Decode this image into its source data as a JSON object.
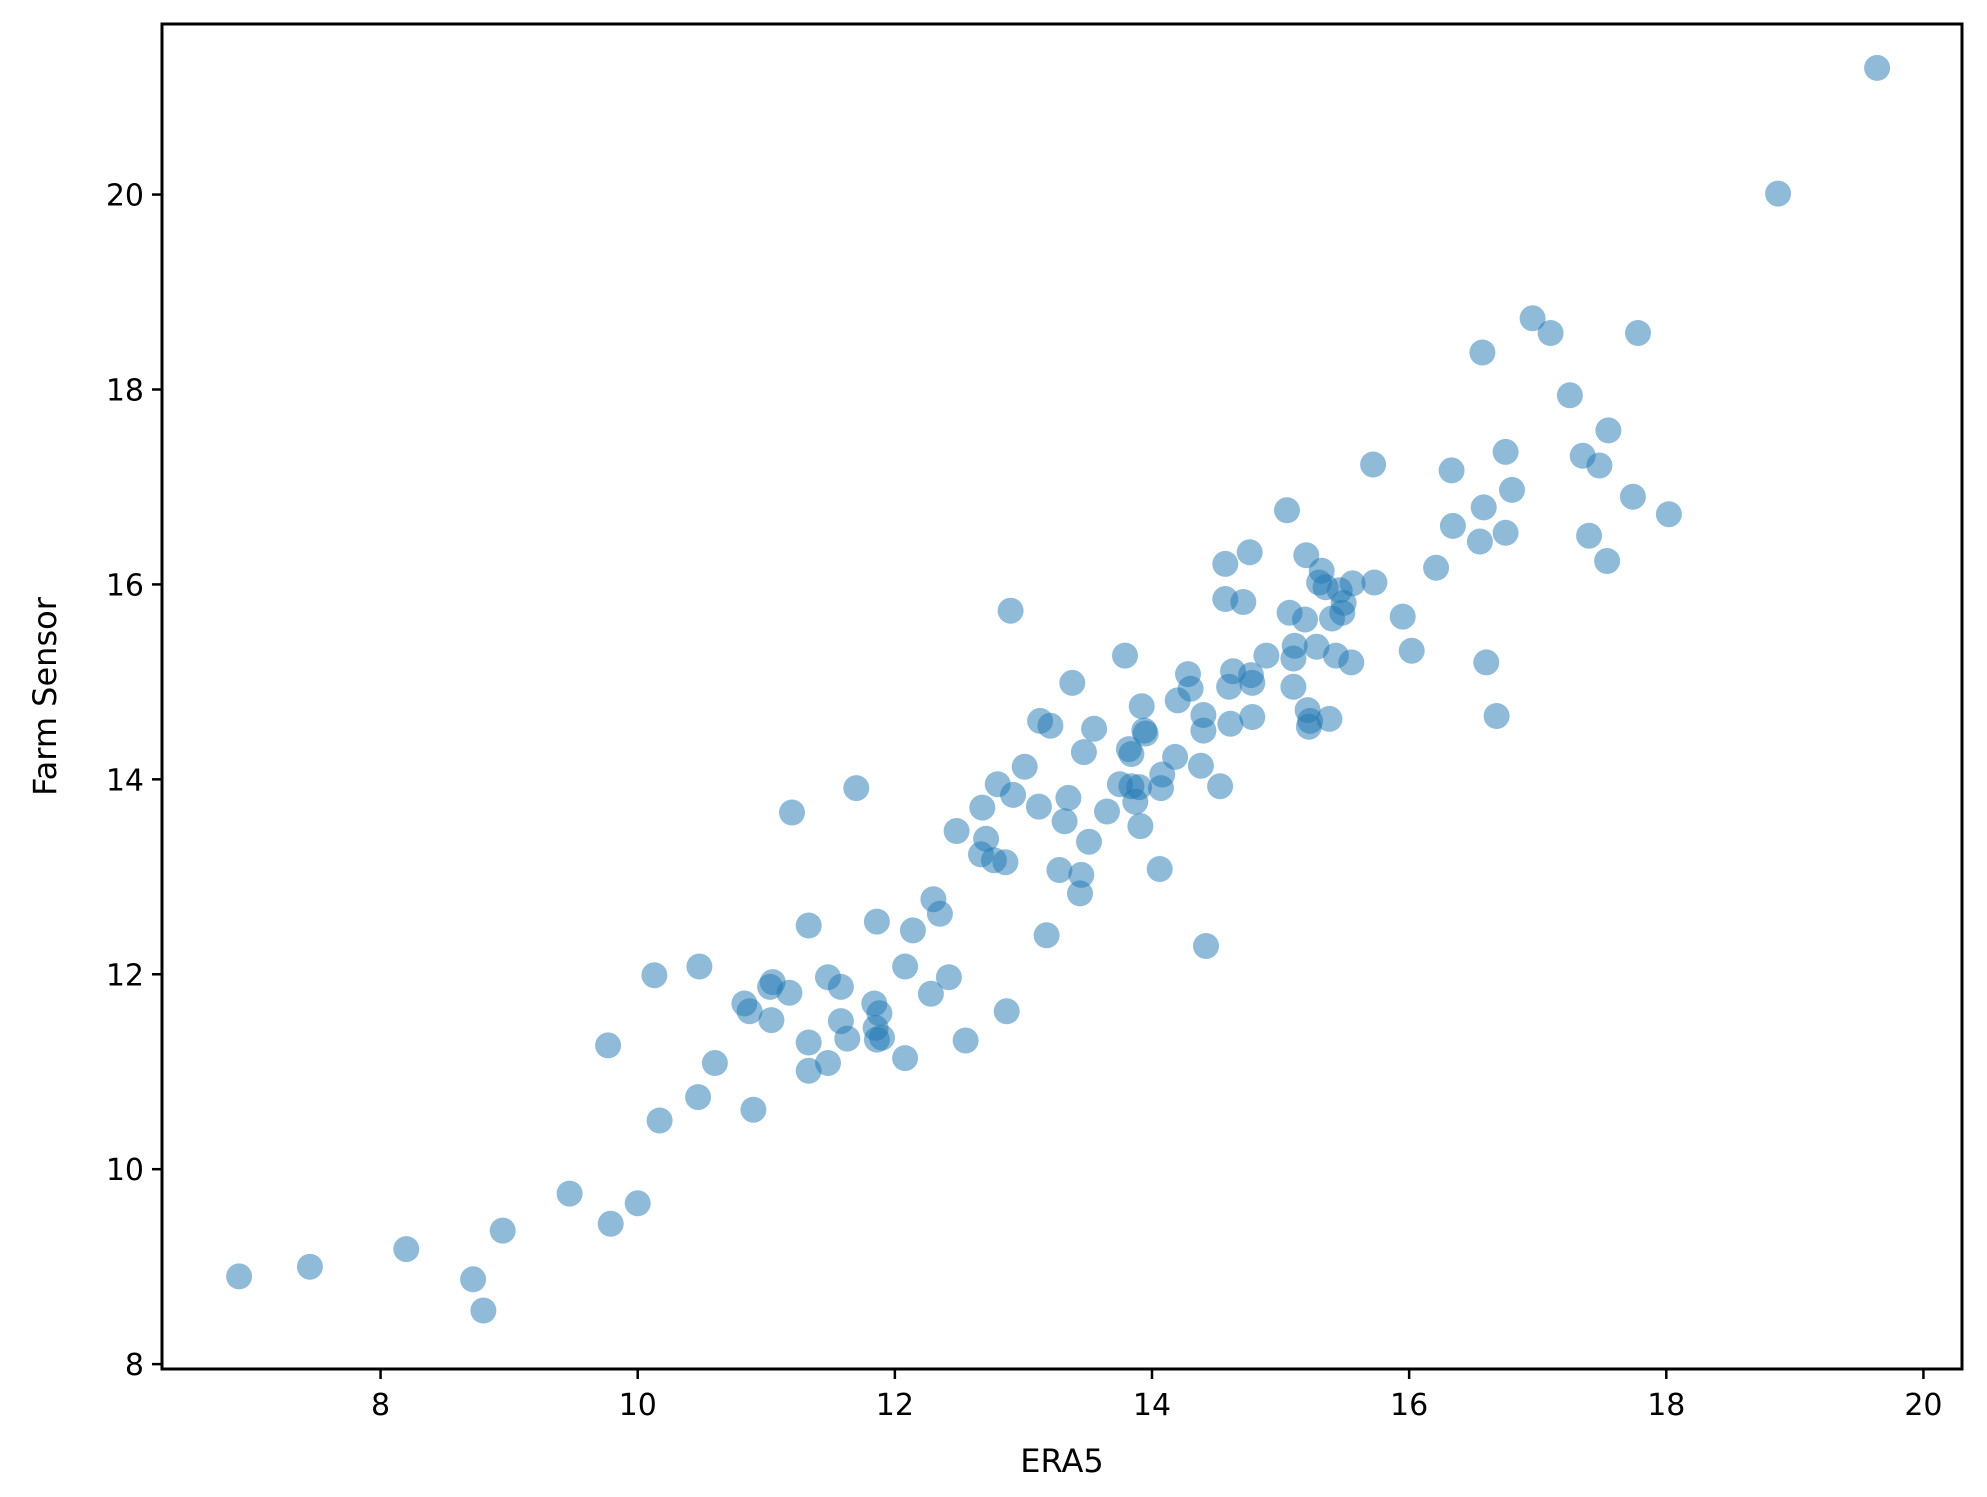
{
  "chart_data": {
    "type": "scatter",
    "title": "",
    "xlabel": "ERA5",
    "ylabel": "Farm Sensor",
    "xlim": [
      6.3,
      20.3
    ],
    "ylim": [
      7.95,
      21.75
    ],
    "xticks": [
      8,
      10,
      12,
      14,
      16,
      18,
      20
    ],
    "yticks": [
      8,
      10,
      12,
      14,
      16,
      18,
      20
    ],
    "grid": false,
    "marker_color": "#1f77b4",
    "marker_opacity": 0.5,
    "points": [
      [
        6.9,
        8.9
      ],
      [
        7.45,
        9.0
      ],
      [
        8.2,
        9.18
      ],
      [
        8.72,
        8.87
      ],
      [
        8.8,
        8.55
      ],
      [
        8.95,
        9.37
      ],
      [
        9.47,
        9.75
      ],
      [
        9.77,
        11.27
      ],
      [
        9.79,
        9.44
      ],
      [
        10.0,
        9.65
      ],
      [
        10.13,
        11.99
      ],
      [
        10.17,
        10.5
      ],
      [
        10.47,
        10.74
      ],
      [
        10.48,
        12.08
      ],
      [
        10.6,
        11.09
      ],
      [
        10.83,
        11.7
      ],
      [
        10.87,
        11.62
      ],
      [
        10.9,
        10.61
      ],
      [
        11.03,
        11.87
      ],
      [
        11.05,
        11.92
      ],
      [
        11.04,
        11.53
      ],
      [
        11.18,
        11.81
      ],
      [
        11.2,
        13.66
      ],
      [
        11.33,
        12.5
      ],
      [
        11.33,
        11.3
      ],
      [
        11.33,
        11.01
      ],
      [
        11.48,
        11.97
      ],
      [
        11.48,
        11.09
      ],
      [
        11.58,
        11.87
      ],
      [
        11.58,
        11.52
      ],
      [
        11.63,
        11.34
      ],
      [
        11.7,
        13.91
      ],
      [
        11.84,
        11.7
      ],
      [
        11.85,
        11.45
      ],
      [
        11.86,
        11.33
      ],
      [
        11.86,
        12.54
      ],
      [
        11.88,
        11.6
      ],
      [
        11.9,
        11.35
      ],
      [
        12.08,
        12.08
      ],
      [
        12.08,
        11.14
      ],
      [
        12.14,
        12.45
      ],
      [
        12.28,
        11.8
      ],
      [
        12.3,
        12.77
      ],
      [
        12.35,
        12.62
      ],
      [
        12.42,
        11.97
      ],
      [
        12.48,
        13.47
      ],
      [
        12.55,
        11.32
      ],
      [
        12.67,
        13.23
      ],
      [
        12.68,
        13.71
      ],
      [
        12.71,
        13.39
      ],
      [
        12.77,
        13.17
      ],
      [
        12.8,
        13.95
      ],
      [
        12.86,
        13.15
      ],
      [
        12.87,
        11.62
      ],
      [
        12.9,
        15.73
      ],
      [
        12.92,
        13.84
      ],
      [
        13.01,
        14.13
      ],
      [
        13.12,
        13.72
      ],
      [
        13.13,
        14.6
      ],
      [
        13.18,
        12.4
      ],
      [
        13.21,
        14.55
      ],
      [
        13.28,
        13.07
      ],
      [
        13.32,
        13.57
      ],
      [
        13.35,
        13.81
      ],
      [
        13.38,
        14.99
      ],
      [
        13.44,
        12.83
      ],
      [
        13.45,
        13.02
      ],
      [
        13.47,
        14.28
      ],
      [
        13.51,
        13.36
      ],
      [
        13.55,
        14.52
      ],
      [
        13.65,
        13.67
      ],
      [
        13.75,
        13.95
      ],
      [
        13.79,
        15.27
      ],
      [
        13.82,
        14.31
      ],
      [
        13.84,
        13.93
      ],
      [
        13.84,
        14.26
      ],
      [
        13.87,
        13.77
      ],
      [
        13.9,
        13.92
      ],
      [
        13.91,
        13.52
      ],
      [
        13.92,
        14.75
      ],
      [
        13.94,
        14.5
      ],
      [
        13.95,
        14.47
      ],
      [
        14.06,
        13.08
      ],
      [
        14.07,
        13.91
      ],
      [
        14.08,
        14.05
      ],
      [
        14.18,
        14.23
      ],
      [
        14.2,
        14.81
      ],
      [
        14.28,
        15.08
      ],
      [
        14.3,
        14.93
      ],
      [
        14.38,
        14.14
      ],
      [
        14.4,
        14.66
      ],
      [
        14.4,
        14.5
      ],
      [
        14.42,
        12.29
      ],
      [
        14.53,
        13.93
      ],
      [
        14.57,
        15.85
      ],
      [
        14.57,
        16.21
      ],
      [
        14.6,
        14.95
      ],
      [
        14.61,
        14.57
      ],
      [
        14.63,
        15.11
      ],
      [
        14.71,
        15.82
      ],
      [
        14.76,
        16.33
      ],
      [
        14.77,
        15.07
      ],
      [
        14.78,
        14.99
      ],
      [
        14.78,
        14.64
      ],
      [
        14.89,
        15.27
      ],
      [
        15.05,
        16.76
      ],
      [
        15.07,
        15.71
      ],
      [
        15.1,
        14.95
      ],
      [
        15.11,
        15.37
      ],
      [
        15.1,
        15.24
      ],
      [
        15.19,
        15.64
      ],
      [
        15.2,
        16.3
      ],
      [
        15.21,
        14.71
      ],
      [
        15.22,
        14.54
      ],
      [
        15.23,
        14.6
      ],
      [
        15.28,
        15.36
      ],
      [
        15.3,
        16.02
      ],
      [
        15.32,
        16.14
      ],
      [
        15.35,
        15.97
      ],
      [
        15.38,
        14.62
      ],
      [
        15.4,
        15.65
      ],
      [
        15.43,
        15.27
      ],
      [
        15.46,
        15.94
      ],
      [
        15.49,
        15.81
      ],
      [
        15.48,
        15.71
      ],
      [
        15.55,
        15.2
      ],
      [
        15.56,
        16.01
      ],
      [
        15.72,
        17.23
      ],
      [
        15.73,
        16.02
      ],
      [
        15.95,
        15.67
      ],
      [
        16.02,
        15.32
      ],
      [
        16.21,
        16.17
      ],
      [
        16.33,
        17.17
      ],
      [
        16.34,
        16.6
      ],
      [
        16.55,
        16.44
      ],
      [
        16.57,
        18.38
      ],
      [
        16.58,
        16.79
      ],
      [
        16.6,
        15.2
      ],
      [
        16.68,
        14.65
      ],
      [
        16.75,
        17.36
      ],
      [
        16.75,
        16.53
      ],
      [
        16.8,
        16.97
      ],
      [
        16.96,
        18.73
      ],
      [
        17.1,
        18.58
      ],
      [
        17.25,
        17.94
      ],
      [
        17.35,
        17.32
      ],
      [
        17.4,
        16.5
      ],
      [
        17.48,
        17.22
      ],
      [
        17.54,
        16.24
      ],
      [
        17.55,
        17.58
      ],
      [
        17.74,
        16.9
      ],
      [
        17.78,
        18.58
      ],
      [
        18.02,
        16.72
      ],
      [
        18.87,
        20.01
      ],
      [
        19.64,
        21.3
      ]
    ]
  }
}
